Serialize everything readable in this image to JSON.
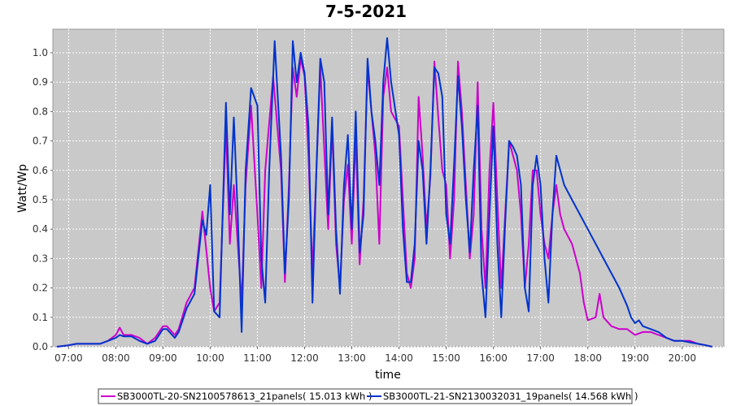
{
  "chart_data": {
    "type": "line",
    "title": "7-5-2021",
    "xlabel": "time",
    "ylabel": "Watt/Wp",
    "xlim": [
      "06:40",
      "20:53"
    ],
    "ylim": [
      0.0,
      1.08
    ],
    "x_ticks": [
      "07:00",
      "08:00",
      "09:00",
      "10:00",
      "11:00",
      "12:00",
      "13:00",
      "14:00",
      "15:00",
      "16:00",
      "17:00",
      "18:00",
      "19:00",
      "20:00"
    ],
    "y_ticks": [
      "0.0",
      "0.1",
      "0.2",
      "0.3",
      "0.4",
      "0.5",
      "0.6",
      "0.7",
      "0.8",
      "0.9",
      "1.0"
    ],
    "grid": true,
    "legend_position": "bottom",
    "series": [
      {
        "name": "SB3000TL-20-SN2100578613_21panels( 15.013 kWh )",
        "color": "#cc00cc",
        "points": [
          [
            "06:45",
            0.0
          ],
          [
            "07:00",
            0.005
          ],
          [
            "07:10",
            0.01
          ],
          [
            "07:20",
            0.01
          ],
          [
            "07:30",
            0.01
          ],
          [
            "07:40",
            0.01
          ],
          [
            "07:50",
            0.02
          ],
          [
            "08:00",
            0.04
          ],
          [
            "08:05",
            0.065
          ],
          [
            "08:10",
            0.04
          ],
          [
            "08:20",
            0.04
          ],
          [
            "08:30",
            0.03
          ],
          [
            "08:40",
            0.01
          ],
          [
            "08:50",
            0.03
          ],
          [
            "09:00",
            0.07
          ],
          [
            "09:05",
            0.07
          ],
          [
            "09:15",
            0.04
          ],
          [
            "09:20",
            0.06
          ],
          [
            "09:30",
            0.15
          ],
          [
            "09:40",
            0.2
          ],
          [
            "09:50",
            0.46
          ],
          [
            "10:00",
            0.2
          ],
          [
            "10:05",
            0.12
          ],
          [
            "10:12",
            0.15
          ],
          [
            "10:20",
            0.75
          ],
          [
            "10:25",
            0.35
          ],
          [
            "10:30",
            0.55
          ],
          [
            "10:35",
            0.35
          ],
          [
            "10:40",
            0.15
          ],
          [
            "10:45",
            0.55
          ],
          [
            "10:52",
            0.82
          ],
          [
            "11:00",
            0.45
          ],
          [
            "11:05",
            0.2
          ],
          [
            "11:10",
            0.6
          ],
          [
            "11:20",
            0.92
          ],
          [
            "11:30",
            0.6
          ],
          [
            "11:35",
            0.22
          ],
          [
            "11:40",
            0.55
          ],
          [
            "11:45",
            0.95
          ],
          [
            "11:50",
            0.85
          ],
          [
            "11:55",
            0.98
          ],
          [
            "12:00",
            0.92
          ],
          [
            "12:05",
            0.65
          ],
          [
            "12:10",
            0.25
          ],
          [
            "12:15",
            0.6
          ],
          [
            "12:20",
            0.95
          ],
          [
            "12:30",
            0.4
          ],
          [
            "12:35",
            0.75
          ],
          [
            "12:40",
            0.35
          ],
          [
            "12:45",
            0.2
          ],
          [
            "12:50",
            0.5
          ],
          [
            "12:55",
            0.62
          ],
          [
            "13:00",
            0.35
          ],
          [
            "13:05",
            0.72
          ],
          [
            "13:10",
            0.28
          ],
          [
            "13:15",
            0.5
          ],
          [
            "13:20",
            0.95
          ],
          [
            "13:30",
            0.65
          ],
          [
            "13:35",
            0.35
          ],
          [
            "13:40",
            0.85
          ],
          [
            "13:45",
            0.95
          ],
          [
            "13:50",
            0.8
          ],
          [
            "14:00",
            0.75
          ],
          [
            "14:05",
            0.5
          ],
          [
            "14:10",
            0.25
          ],
          [
            "14:15",
            0.2
          ],
          [
            "14:20",
            0.3
          ],
          [
            "14:25",
            0.85
          ],
          [
            "14:30",
            0.65
          ],
          [
            "14:35",
            0.4
          ],
          [
            "14:40",
            0.58
          ],
          [
            "14:45",
            0.97
          ],
          [
            "14:50",
            0.78
          ],
          [
            "14:55",
            0.6
          ],
          [
            "15:00",
            0.55
          ],
          [
            "15:05",
            0.3
          ],
          [
            "15:10",
            0.5
          ],
          [
            "15:15",
            0.97
          ],
          [
            "15:20",
            0.8
          ],
          [
            "15:25",
            0.55
          ],
          [
            "15:30",
            0.3
          ],
          [
            "15:35",
            0.45
          ],
          [
            "15:40",
            0.9
          ],
          [
            "15:45",
            0.4
          ],
          [
            "15:50",
            0.2
          ],
          [
            "15:55",
            0.6
          ],
          [
            "16:00",
            0.83
          ],
          [
            "16:05",
            0.5
          ],
          [
            "16:10",
            0.2
          ],
          [
            "16:15",
            0.45
          ],
          [
            "16:20",
            0.7
          ],
          [
            "16:25",
            0.65
          ],
          [
            "16:30",
            0.6
          ],
          [
            "16:35",
            0.45
          ],
          [
            "16:40",
            0.2
          ],
          [
            "16:45",
            0.35
          ],
          [
            "16:50",
            0.6
          ],
          [
            "16:55",
            0.6
          ],
          [
            "17:00",
            0.45
          ],
          [
            "17:05",
            0.35
          ],
          [
            "17:10",
            0.3
          ],
          [
            "17:15",
            0.45
          ],
          [
            "17:20",
            0.55
          ],
          [
            "17:25",
            0.45
          ],
          [
            "17:30",
            0.4
          ],
          [
            "17:40",
            0.35
          ],
          [
            "17:50",
            0.25
          ],
          [
            "17:55",
            0.15
          ],
          [
            "18:00",
            0.09
          ],
          [
            "18:10",
            0.1
          ],
          [
            "18:15",
            0.18
          ],
          [
            "18:20",
            0.1
          ],
          [
            "18:30",
            0.07
          ],
          [
            "18:40",
            0.06
          ],
          [
            "18:50",
            0.06
          ],
          [
            "19:00",
            0.04
          ],
          [
            "19:10",
            0.05
          ],
          [
            "19:20",
            0.05
          ],
          [
            "19:30",
            0.04
          ],
          [
            "19:40",
            0.03
          ],
          [
            "19:50",
            0.02
          ],
          [
            "20:00",
            0.02
          ],
          [
            "20:10",
            0.02
          ],
          [
            "20:20",
            0.01
          ],
          [
            "20:30",
            0.005
          ],
          [
            "20:38",
            0.0
          ]
        ]
      },
      {
        "name": "SB3000TL-21-SN2130032031_19panels( 14.568 kWh )",
        "color": "#0033cc",
        "points": [
          [
            "06:45",
            0.0
          ],
          [
            "07:00",
            0.005
          ],
          [
            "07:10",
            0.01
          ],
          [
            "07:20",
            0.01
          ],
          [
            "07:30",
            0.01
          ],
          [
            "07:40",
            0.01
          ],
          [
            "07:50",
            0.02
          ],
          [
            "08:00",
            0.03
          ],
          [
            "08:05",
            0.04
          ],
          [
            "08:10",
            0.035
          ],
          [
            "08:20",
            0.035
          ],
          [
            "08:30",
            0.02
          ],
          [
            "08:40",
            0.01
          ],
          [
            "08:50",
            0.02
          ],
          [
            "09:00",
            0.06
          ],
          [
            "09:05",
            0.06
          ],
          [
            "09:15",
            0.03
          ],
          [
            "09:20",
            0.05
          ],
          [
            "09:30",
            0.13
          ],
          [
            "09:40",
            0.18
          ],
          [
            "09:50",
            0.43
          ],
          [
            "09:55",
            0.38
          ],
          [
            "10:00",
            0.55
          ],
          [
            "10:05",
            0.12
          ],
          [
            "10:12",
            0.1
          ],
          [
            "10:20",
            0.83
          ],
          [
            "10:25",
            0.45
          ],
          [
            "10:30",
            0.78
          ],
          [
            "10:35",
            0.45
          ],
          [
            "10:40",
            0.05
          ],
          [
            "10:45",
            0.6
          ],
          [
            "10:52",
            0.88
          ],
          [
            "11:00",
            0.82
          ],
          [
            "11:05",
            0.3
          ],
          [
            "11:10",
            0.15
          ],
          [
            "11:15",
            0.6
          ],
          [
            "11:22",
            1.04
          ],
          [
            "11:30",
            0.65
          ],
          [
            "11:35",
            0.25
          ],
          [
            "11:40",
            0.5
          ],
          [
            "11:45",
            1.04
          ],
          [
            "11:50",
            0.9
          ],
          [
            "11:55",
            1.0
          ],
          [
            "12:00",
            0.93
          ],
          [
            "12:05",
            0.75
          ],
          [
            "12:10",
            0.15
          ],
          [
            "12:15",
            0.6
          ],
          [
            "12:20",
            0.98
          ],
          [
            "12:25",
            0.9
          ],
          [
            "12:30",
            0.45
          ],
          [
            "12:35",
            0.78
          ],
          [
            "12:40",
            0.4
          ],
          [
            "12:45",
            0.18
          ],
          [
            "12:50",
            0.55
          ],
          [
            "12:55",
            0.72
          ],
          [
            "13:00",
            0.4
          ],
          [
            "13:05",
            0.8
          ],
          [
            "13:10",
            0.32
          ],
          [
            "13:15",
            0.45
          ],
          [
            "13:20",
            0.98
          ],
          [
            "13:25",
            0.8
          ],
          [
            "13:30",
            0.7
          ],
          [
            "13:35",
            0.55
          ],
          [
            "13:40",
            0.9
          ],
          [
            "13:45",
            1.05
          ],
          [
            "13:50",
            0.9
          ],
          [
            "14:00",
            0.72
          ],
          [
            "14:05",
            0.4
          ],
          [
            "14:10",
            0.22
          ],
          [
            "14:15",
            0.22
          ],
          [
            "14:20",
            0.35
          ],
          [
            "14:25",
            0.7
          ],
          [
            "14:30",
            0.6
          ],
          [
            "14:35",
            0.35
          ],
          [
            "14:40",
            0.6
          ],
          [
            "14:45",
            0.95
          ],
          [
            "14:50",
            0.93
          ],
          [
            "14:55",
            0.85
          ],
          [
            "15:00",
            0.45
          ],
          [
            "15:05",
            0.35
          ],
          [
            "15:10",
            0.62
          ],
          [
            "15:15",
            0.92
          ],
          [
            "15:20",
            0.75
          ],
          [
            "15:25",
            0.5
          ],
          [
            "15:30",
            0.32
          ],
          [
            "15:35",
            0.6
          ],
          [
            "15:40",
            0.82
          ],
          [
            "15:45",
            0.25
          ],
          [
            "15:50",
            0.1
          ],
          [
            "15:55",
            0.45
          ],
          [
            "16:00",
            0.75
          ],
          [
            "16:05",
            0.35
          ],
          [
            "16:10",
            0.1
          ],
          [
            "16:15",
            0.42
          ],
          [
            "16:20",
            0.7
          ],
          [
            "16:25",
            0.68
          ],
          [
            "16:30",
            0.65
          ],
          [
            "16:35",
            0.55
          ],
          [
            "16:40",
            0.2
          ],
          [
            "16:45",
            0.12
          ],
          [
            "16:50",
            0.55
          ],
          [
            "16:55",
            0.65
          ],
          [
            "17:00",
            0.55
          ],
          [
            "17:05",
            0.3
          ],
          [
            "17:10",
            0.15
          ],
          [
            "17:15",
            0.45
          ],
          [
            "17:20",
            0.65
          ],
          [
            "17:30",
            0.55
          ],
          [
            "17:40",
            0.5
          ],
          [
            "17:50",
            0.45
          ],
          [
            "18:00",
            0.4
          ],
          [
            "18:10",
            0.35
          ],
          [
            "18:20",
            0.3
          ],
          [
            "18:30",
            0.25
          ],
          [
            "18:40",
            0.2
          ],
          [
            "18:50",
            0.14
          ],
          [
            "18:55",
            0.1
          ],
          [
            "19:00",
            0.08
          ],
          [
            "19:05",
            0.09
          ],
          [
            "19:10",
            0.07
          ],
          [
            "19:20",
            0.06
          ],
          [
            "19:30",
            0.05
          ],
          [
            "19:40",
            0.03
          ],
          [
            "19:50",
            0.02
          ],
          [
            "20:00",
            0.02
          ],
          [
            "20:10",
            0.015
          ],
          [
            "20:20",
            0.01
          ],
          [
            "20:30",
            0.005
          ],
          [
            "20:38",
            0.0
          ]
        ]
      }
    ]
  }
}
